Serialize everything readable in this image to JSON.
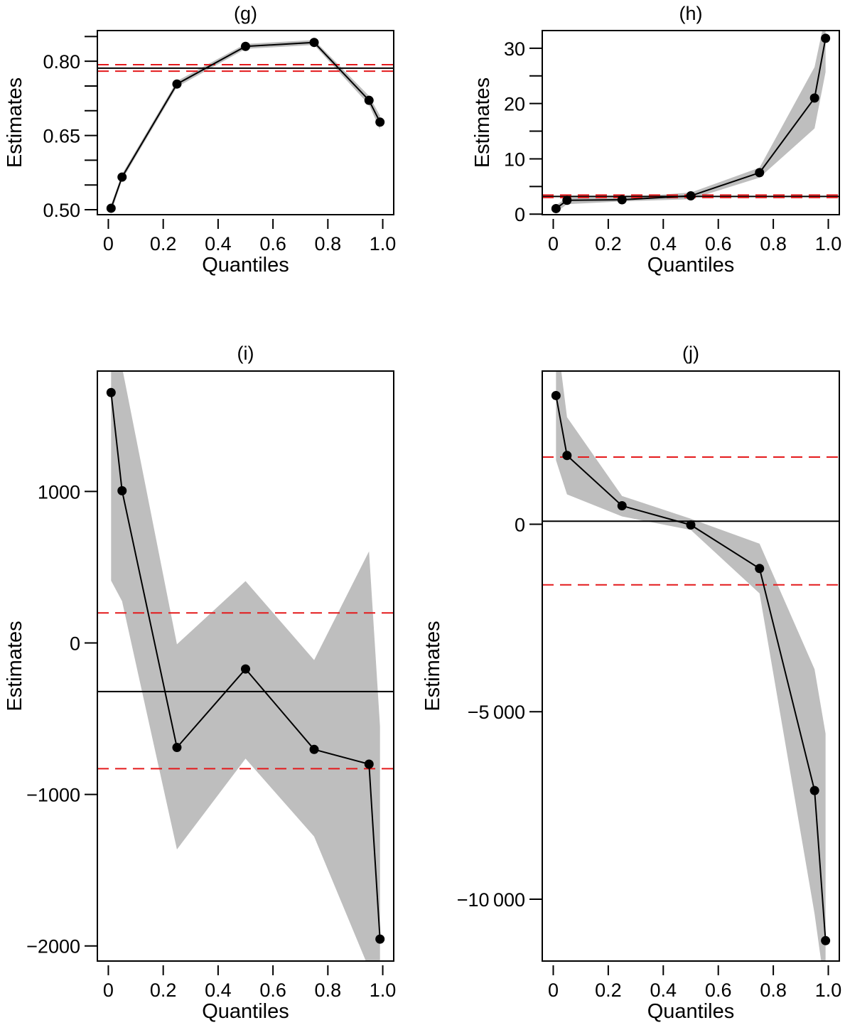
{
  "figure": {
    "colors": {
      "estimate_line": "#000000",
      "band_fill": "#bebebe",
      "reference_line": "#000000",
      "reference_bounds": "#e41a1c"
    }
  },
  "chart_data": [
    {
      "id": "g",
      "type": "line",
      "title": "(g)",
      "xlabel": "Quantiles",
      "ylabel": "Estimates",
      "xlim": [
        -0.04,
        1.04
      ],
      "ylim": [
        0.49,
        0.862
      ],
      "xticks": [
        0,
        0.2,
        0.4,
        0.6,
        0.8,
        1.0
      ],
      "xtick_labels": [
        "0",
        "0.2",
        "0.4",
        "0.6",
        "0.8",
        "1.0"
      ],
      "yticks": [
        0.5,
        0.55,
        0.6,
        0.65,
        0.7,
        0.75,
        0.8,
        0.85
      ],
      "ytick_labels": [
        "0.50",
        "",
        "",
        "0.65",
        "",
        "",
        "0.80",
        ""
      ],
      "x": [
        0.01,
        0.05,
        0.25,
        0.5,
        0.75,
        0.95,
        0.99
      ],
      "series": [
        {
          "name": "estimate",
          "values": [
            0.503,
            0.566,
            0.754,
            0.83,
            0.838,
            0.721,
            0.677
          ]
        },
        {
          "name": "band_upper",
          "values": [
            0.51,
            0.572,
            0.76,
            0.835,
            0.843,
            0.73,
            0.69
          ]
        },
        {
          "name": "band_lower",
          "values": [
            0.494,
            0.56,
            0.748,
            0.825,
            0.833,
            0.712,
            0.662
          ]
        }
      ],
      "hlines": {
        "estimate": 0.786,
        "upper_bound": 0.793,
        "lower_bound": 0.78
      },
      "grid": false
    },
    {
      "id": "h",
      "type": "line",
      "title": "(h)",
      "xlabel": "Quantiles",
      "ylabel": "Estimates",
      "xlim": [
        -0.04,
        1.04
      ],
      "ylim": [
        -0.1,
        33.2
      ],
      "xticks": [
        0,
        0.2,
        0.4,
        0.6,
        0.8,
        1.0
      ],
      "xtick_labels": [
        "0",
        "0.2",
        "0.4",
        "0.6",
        "0.8",
        "1.0"
      ],
      "yticks": [
        0,
        5,
        10,
        15,
        20,
        25,
        30
      ],
      "ytick_labels": [
        "0",
        "",
        "10",
        "",
        "20",
        "",
        "30"
      ],
      "x": [
        0.01,
        0.05,
        0.25,
        0.5,
        0.75,
        0.95,
        0.99
      ],
      "series": [
        {
          "name": "estimate",
          "values": [
            1.0,
            2.5,
            2.6,
            3.3,
            7.5,
            21.0,
            31.8
          ]
        },
        {
          "name": "band_upper",
          "values": [
            1.6,
            3.0,
            3.0,
            3.9,
            8.4,
            26.6,
            36.0
          ]
        },
        {
          "name": "band_lower",
          "values": [
            0.3,
            1.8,
            2.3,
            2.7,
            6.6,
            15.5,
            25.7
          ]
        }
      ],
      "hlines": {
        "estimate": 3.2,
        "upper_bound": 3.45,
        "lower_bound": 3.0
      },
      "grid": false
    },
    {
      "id": "i",
      "type": "line",
      "title": "(i)",
      "xlabel": "Quantiles",
      "ylabel": "Estimates",
      "xlim": [
        -0.04,
        1.04
      ],
      "ylim": [
        -2100,
        1795
      ],
      "xticks": [
        0,
        0.2,
        0.4,
        0.6,
        0.8,
        1.0
      ],
      "xtick_labels": [
        "0",
        "0.2",
        "0.4",
        "0.6",
        "0.8",
        "1.0"
      ],
      "yticks": [
        -2000,
        -1000,
        0,
        1000
      ],
      "ytick_labels": [
        "−2000",
        "−1000",
        "0",
        "1000"
      ],
      "x": [
        0.01,
        0.05,
        0.25,
        0.5,
        0.75,
        0.95,
        0.99
      ],
      "series": [
        {
          "name": "estimate",
          "values": [
            1653,
            1005,
            -690,
            -172,
            -703,
            -800,
            -1955
          ]
        },
        {
          "name": "band_upper",
          "values": [
            2300,
            1820,
            -9,
            408,
            -113,
            605,
            -550
          ]
        },
        {
          "name": "band_lower",
          "values": [
            411,
            276,
            -1363,
            -764,
            -1278,
            -2150,
            -2500
          ]
        }
      ],
      "hlines": {
        "estimate": -321,
        "upper_bound": 198,
        "lower_bound": -830
      },
      "grid": false
    },
    {
      "id": "j",
      "type": "line",
      "title": "(j)",
      "xlabel": "Quantiles",
      "ylabel": "Estimates",
      "xlim": [
        -0.04,
        1.04
      ],
      "ylim": [
        -11650,
        4085
      ],
      "xticks": [
        0,
        0.2,
        0.4,
        0.6,
        0.8,
        1.0
      ],
      "xtick_labels": [
        "0",
        "0.2",
        "0.4",
        "0.6",
        "0.8",
        "1.0"
      ],
      "yticks": [
        -10000,
        -5000,
        0
      ],
      "ytick_labels": [
        "−10 000",
        "−5 000",
        "0"
      ],
      "x": [
        0.01,
        0.05,
        0.25,
        0.5,
        0.75,
        0.95,
        0.99
      ],
      "series": [
        {
          "name": "estimate",
          "values": [
            3432,
            1833,
            492,
            -19,
            -1180,
            -7102,
            -11106
          ]
        },
        {
          "name": "band_upper",
          "values": [
            5200,
            2854,
            754,
            146,
            -519,
            -3867,
            -5587
          ]
        },
        {
          "name": "band_lower",
          "values": [
            1705,
            795,
            208,
            -152,
            -1845,
            -10389,
            -12500
          ]
        }
      ],
      "hlines": {
        "estimate": 80,
        "upper_bound": 1790,
        "lower_bound": -1617
      },
      "grid": false
    }
  ]
}
